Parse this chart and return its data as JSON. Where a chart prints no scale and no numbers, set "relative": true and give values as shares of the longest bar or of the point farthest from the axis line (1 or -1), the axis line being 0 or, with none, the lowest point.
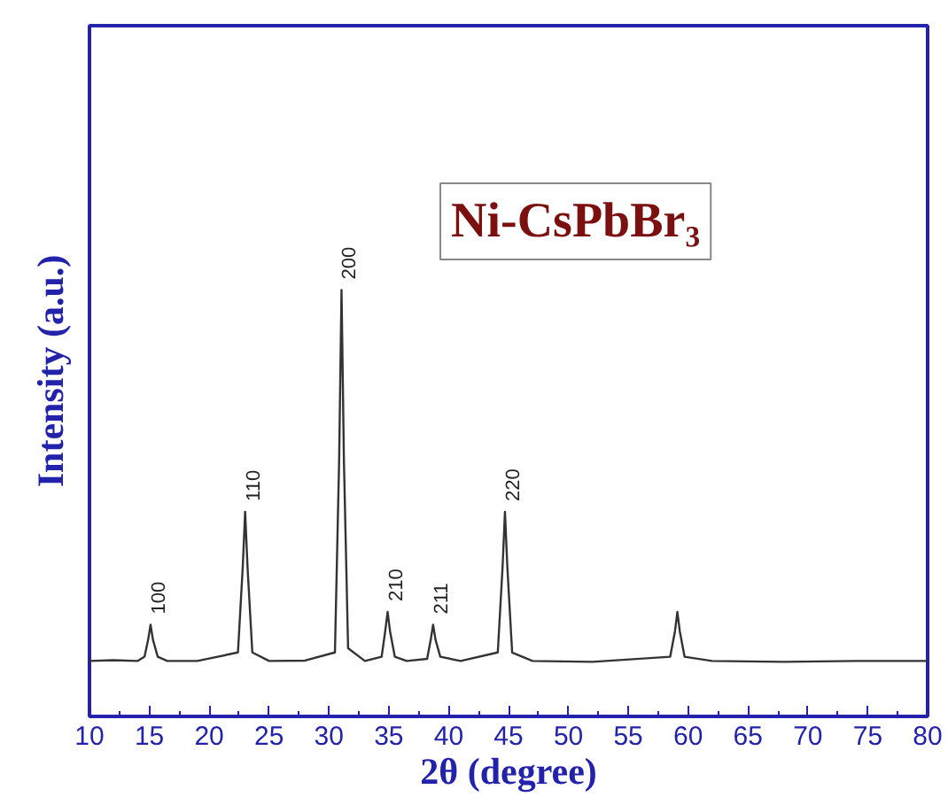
{
  "chart_data": {
    "type": "line",
    "title": "Ni-CsPbBr₃",
    "xlabel": "2θ (degree)",
    "ylabel": "Intensity (a.u.)",
    "relative": true,
    "x": [
      10,
      12,
      14,
      14.6,
      14.9,
      15.1,
      15.3,
      15.7,
      16.5,
      19,
      22.4,
      22.8,
      23.0,
      23.2,
      23.6,
      25,
      28,
      30.5,
      30.85,
      31.05,
      31.25,
      31.6,
      33,
      34.4,
      34.7,
      34.9,
      35.1,
      35.5,
      36.5,
      38.2,
      38.5,
      38.7,
      38.9,
      39.3,
      41,
      44.1,
      44.5,
      44.7,
      44.9,
      45.3,
      47,
      52,
      58.5,
      58.9,
      59.1,
      59.3,
      59.7,
      62,
      68,
      74,
      80
    ],
    "series": [
      {
        "color": "#333333",
        "values": [
          0.13,
          0.132,
          0.13,
          0.14,
          0.18,
          0.215,
          0.18,
          0.14,
          0.13,
          0.13,
          0.15,
          0.35,
          0.48,
          0.35,
          0.15,
          0.13,
          0.131,
          0.15,
          0.6,
          1.0,
          0.6,
          0.16,
          0.13,
          0.14,
          0.2,
          0.245,
          0.2,
          0.14,
          0.13,
          0.135,
          0.18,
          0.215,
          0.18,
          0.14,
          0.13,
          0.15,
          0.35,
          0.48,
          0.35,
          0.15,
          0.13,
          0.128,
          0.14,
          0.2,
          0.245,
          0.2,
          0.14,
          0.13,
          0.128,
          0.13,
          0.13
        ]
      }
    ],
    "annotations": [
      {
        "text": "100",
        "x": 15.1,
        "y": 0.215
      },
      {
        "text": "110",
        "x": 23.0,
        "y": 0.48
      },
      {
        "text": "200",
        "x": 31.05,
        "y": 1.0
      },
      {
        "text": "210",
        "x": 34.9,
        "y": 0.245
      },
      {
        "text": "211",
        "x": 38.7,
        "y": 0.215
      },
      {
        "text": "220",
        "x": 44.7,
        "y": 0.48
      }
    ],
    "xlim": [
      10,
      80
    ],
    "xticks": [
      10,
      15,
      20,
      25,
      30,
      35,
      40,
      45,
      50,
      55,
      60,
      65,
      70,
      75,
      80
    ],
    "grid": false
  }
}
